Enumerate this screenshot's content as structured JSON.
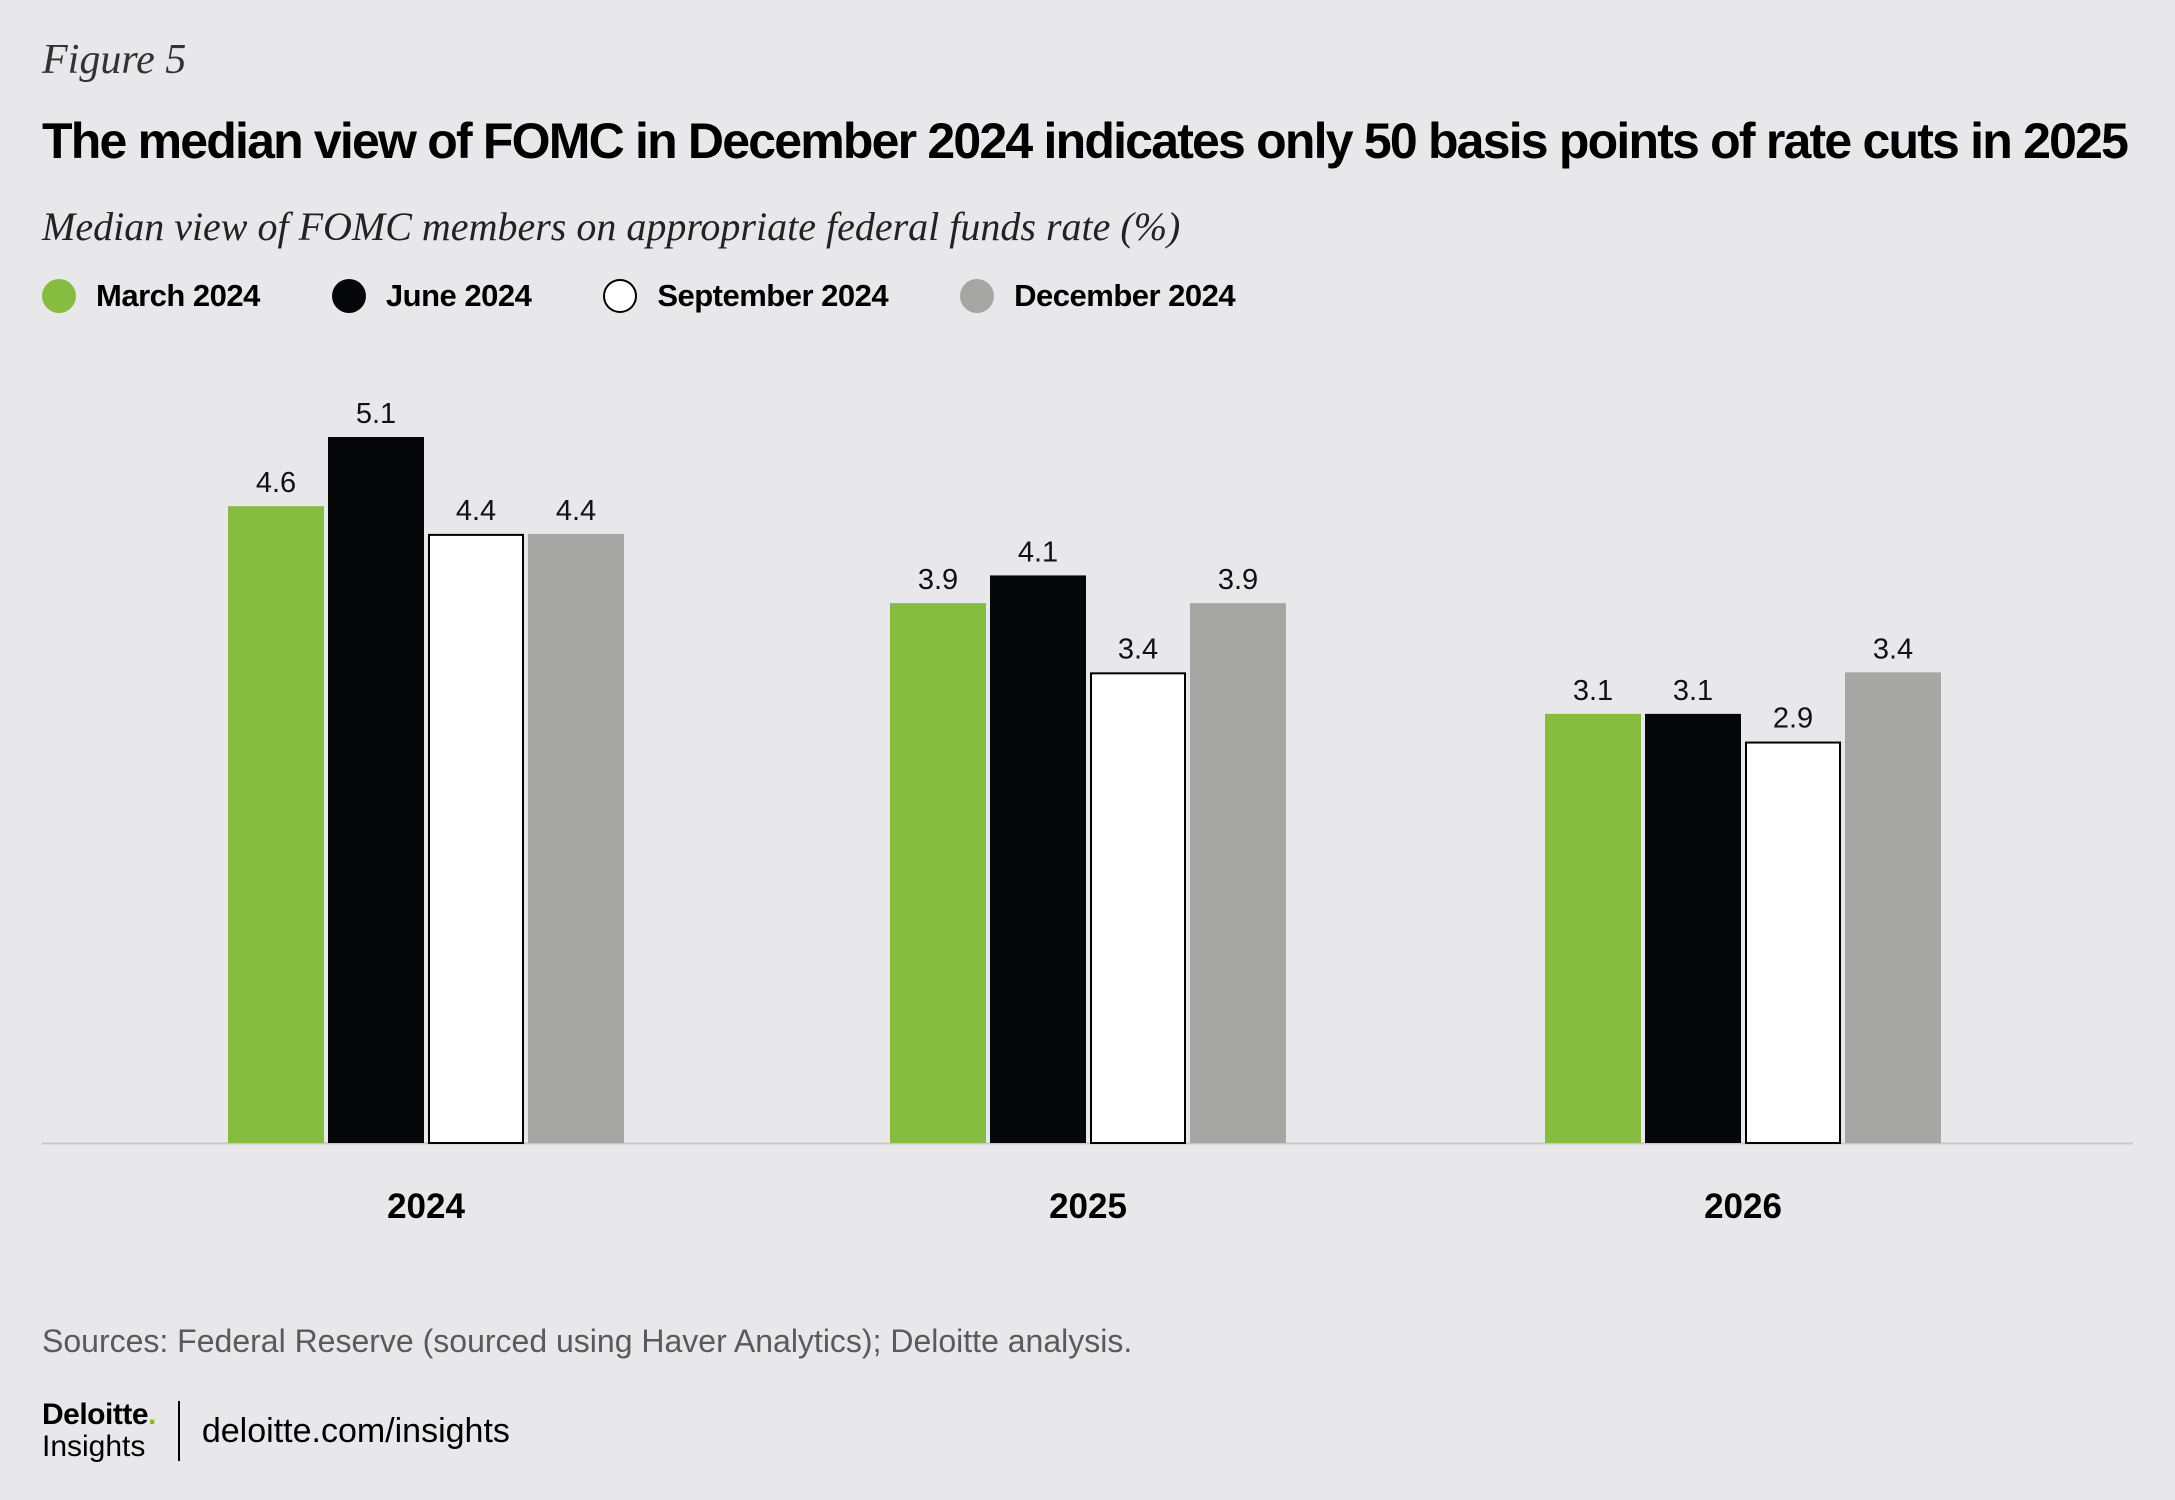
{
  "figure_label": "Figure 5",
  "title": "The median view of FOMC in December 2024 indicates only 50 basis points of rate cuts in 2025",
  "subtitle": "Median view of FOMC members on appropriate federal funds rate (%)",
  "source": "Sources: Federal Reserve (sourced using Haver Analytics); Deloitte analysis.",
  "footer": {
    "logo_main": "Deloitte",
    "logo_dot": ".",
    "logo_sub": "Insights",
    "url": "deloitte.com/insights"
  },
  "colors": {
    "march": "#86bc3f",
    "june": "#050708",
    "september": "#ffffff",
    "december": "#a6a6a4",
    "background": "#e8e8ea"
  },
  "chart_data": {
    "type": "bar",
    "title": "The median view of FOMC in December 2024 indicates only 50 basis points of rate cuts in 2025",
    "ylabel": "Median view of FOMC members on appropriate federal funds rate (%)",
    "xlabel": "",
    "categories": [
      "2024",
      "2025",
      "2026"
    ],
    "ylim": [
      0,
      5.1
    ],
    "grid": false,
    "legend": "top-left",
    "series": [
      {
        "name": "March 2024",
        "color": "#86bc3f",
        "values": [
          4.6,
          3.9,
          3.1
        ],
        "labels": [
          "4.6",
          "3.9",
          "3.1"
        ]
      },
      {
        "name": "June 2024",
        "color": "#050708",
        "values": [
          5.1,
          4.1,
          3.1
        ],
        "labels": [
          "5.1",
          "4.1",
          "3.1"
        ]
      },
      {
        "name": "September 2024",
        "color": "#ffffff",
        "values": [
          4.4,
          3.4,
          2.9
        ],
        "labels": [
          "4.4",
          "3.4",
          "2.9"
        ]
      },
      {
        "name": "December 2024",
        "color": "#a6a6a4",
        "values": [
          4.4,
          3.9,
          3.4
        ],
        "labels": [
          "4.4",
          "3.9",
          "3.4"
        ]
      }
    ]
  }
}
